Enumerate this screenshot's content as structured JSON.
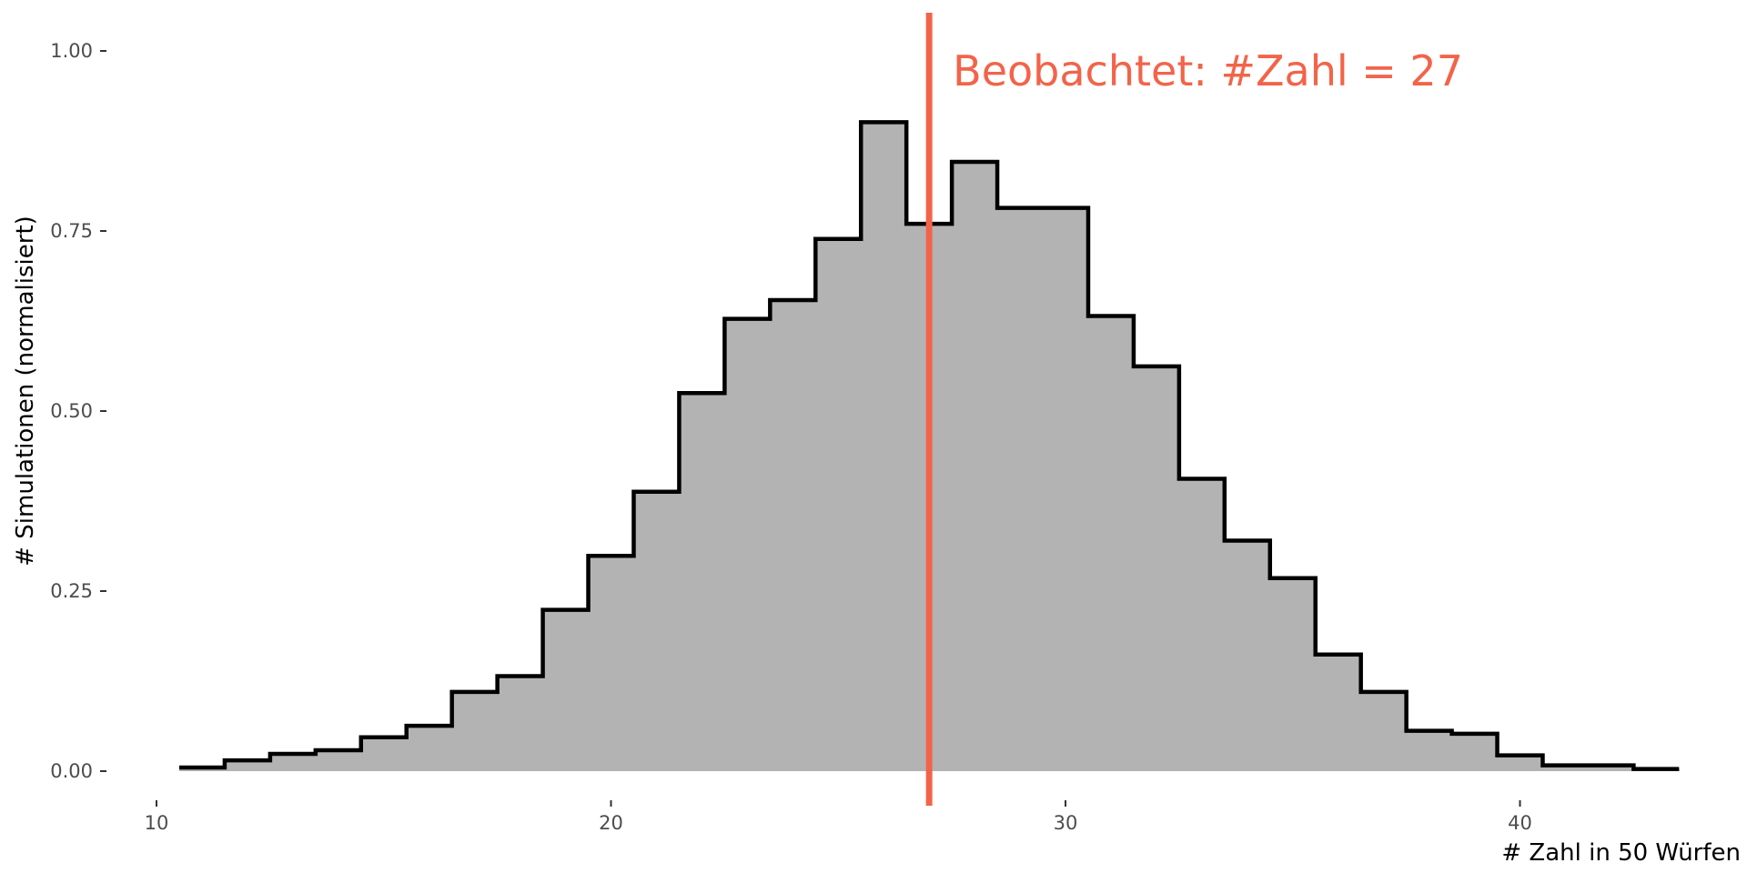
{
  "chart_data": {
    "type": "bar",
    "subtype": "step-histogram",
    "title": "",
    "xlabel": "# Zahl in 50 Würfen",
    "ylabel": "# Simulationen (normalisiert)",
    "xlim": [
      10,
      44
    ],
    "ylim": [
      0,
      1.0
    ],
    "grid": false,
    "x_ticks": [
      10,
      20,
      30,
      40
    ],
    "x_tick_labels": [
      "10",
      "20",
      "30",
      "40"
    ],
    "y_ticks": [
      0,
      0.25,
      0.5,
      0.75,
      1.0
    ],
    "y_tick_labels": [
      "0.00",
      "0.25",
      "0.50",
      "0.75",
      "1.00"
    ],
    "fill_color": "#b3b3b3",
    "line_color": "#000000",
    "x": [
      11,
      12,
      13,
      14,
      15,
      16,
      17,
      18,
      19,
      20,
      21,
      22,
      23,
      24,
      25,
      26,
      27,
      28,
      29,
      30,
      31,
      32,
      33,
      34,
      35,
      36,
      37,
      38,
      39,
      40,
      41,
      42,
      43
    ],
    "values": [
      0.005,
      0.015,
      0.024,
      0.029,
      0.047,
      0.063,
      0.11,
      0.132,
      0.224,
      0.299,
      0.388,
      0.525,
      0.628,
      0.654,
      0.739,
      0.901,
      0.76,
      0.846,
      0.782,
      0.782,
      0.632,
      0.562,
      0.406,
      0.32,
      0.268,
      0.162,
      0.11,
      0.056,
      0.052,
      0.022,
      0.008,
      0.008,
      0.003
    ],
    "reference_line": {
      "x": 27,
      "label": "Beobachtet: #Zahl = 27",
      "color": "#f2644a"
    }
  }
}
